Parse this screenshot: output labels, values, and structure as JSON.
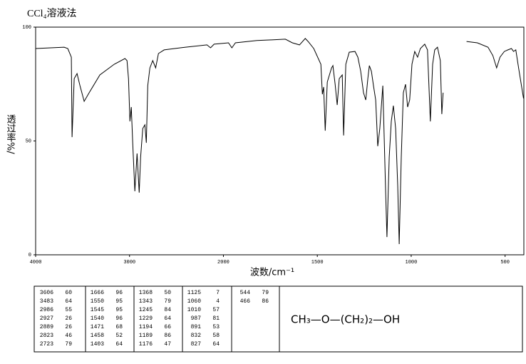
{
  "chart_data": {
    "type": "line",
    "title": "CCl₄溶液法",
    "xlabel": "波数/cm⁻¹",
    "ylabel": "透过率%/",
    "xlim": [
      4000,
      400
    ],
    "xticks": [
      4000,
      3000,
      2000,
      1500,
      1000,
      500
    ],
    "ylim": [
      0,
      100
    ],
    "yticks": [
      0,
      50,
      100
    ],
    "color": "#000000",
    "x": [
      4000,
      3696,
      3658,
      3620,
      3612,
      3589,
      3559,
      3528,
      3483,
      3430,
      3316,
      3163,
      3049,
      3027,
      3011,
      2996,
      2981,
      2966,
      2943,
      2920,
      2897,
      2882,
      2859,
      2836,
      2821,
      2806,
      2783,
      2753,
      2722,
      2692,
      2631,
      2403,
      2175,
      2137,
      2099,
      1973,
      1955,
      1936,
      1822,
      1746,
      1670,
      1633,
      1595,
      1564,
      1549,
      1519,
      1481,
      1473,
      1466,
      1458,
      1447,
      1424,
      1417,
      1405,
      1394,
      1383,
      1367,
      1360,
      1348,
      1330,
      1299,
      1284,
      1269,
      1254,
      1242,
      1231,
      1223,
      1212,
      1201,
      1189,
      1178,
      1167,
      1151,
      1136,
      1129,
      1117,
      1106,
      1095,
      1083,
      1072,
      1064,
      1053,
      1042,
      1030,
      1019,
      1008,
      996,
      981,
      966,
      951,
      928,
      913,
      898,
      886,
      875,
      860,
      845,
      837,
      830,
      770,
      705,
      648,
      591,
      565,
      545,
      527,
      504,
      485,
      466,
      455,
      443,
      428,
      402
    ],
    "values": [
      90.6,
      91.2,
      90.6,
      86.8,
      51.7,
      77.4,
      79.6,
      74.3,
      67.4,
      71.2,
      79.0,
      83.7,
      86.2,
      85.3,
      77.4,
      58.6,
      64.9,
      49.2,
      27.9,
      44.5,
      27.3,
      42.9,
      55.5,
      57.1,
      49.2,
      74.3,
      82.1,
      85.3,
      82.1,
      88.4,
      90.0,
      91.2,
      92.2,
      90.9,
      92.5,
      93.1,
      90.9,
      93.1,
      94.1,
      94.4,
      94.7,
      93.1,
      92.2,
      95.0,
      93.7,
      90.6,
      83.7,
      70.5,
      73.7,
      54.5,
      75.9,
      82.1,
      83.1,
      74.9,
      65.8,
      77.4,
      79.0,
      52.4,
      83.7,
      89.0,
      89.3,
      86.8,
      80.6,
      71.2,
      68.0,
      77.4,
      83.1,
      80.6,
      74.3,
      68.0,
      47.7,
      55.5,
      74.3,
      27.3,
      7.8,
      42.9,
      58.6,
      65.5,
      55.5,
      30.4,
      4.7,
      42.9,
      71.2,
      74.9,
      64.9,
      68.0,
      83.7,
      89.3,
      86.8,
      90.6,
      92.5,
      90.0,
      58.6,
      83.7,
      90.0,
      91.2,
      85.3,
      61.8,
      71.2,
      null,
      93.7,
      93.1,
      91.2,
      87.5,
      82.1,
      86.8,
      89.3,
      90.0,
      90.6,
      89.3,
      90.0,
      82.1,
      68.7
    ]
  },
  "peak_table": {
    "columns": [
      [
        [
          3606,
          60
        ],
        [
          3483,
          64
        ],
        [
          2986,
          55
        ],
        [
          2927,
          26
        ],
        [
          2889,
          26
        ],
        [
          2823,
          46
        ],
        [
          2723,
          79
        ]
      ],
      [
        [
          1666,
          96
        ],
        [
          1550,
          95
        ],
        [
          1545,
          95
        ],
        [
          1540,
          96
        ],
        [
          1471,
          68
        ],
        [
          1458,
          52
        ],
        [
          1403,
          64
        ]
      ],
      [
        [
          1368,
          50
        ],
        [
          1343,
          79
        ],
        [
          1245,
          84
        ],
        [
          1229,
          64
        ],
        [
          1194,
          66
        ],
        [
          1189,
          86
        ],
        [
          1176,
          47
        ]
      ],
      [
        [
          1125,
          7
        ],
        [
          1060,
          4
        ],
        [
          1010,
          57
        ],
        [
          987,
          81
        ],
        [
          891,
          53
        ],
        [
          832,
          58
        ],
        [
          827,
          64
        ]
      ],
      [
        [
          544,
          79
        ],
        [
          466,
          86
        ]
      ]
    ]
  },
  "formula": "CH₃—O—(CH₂)₂—OH"
}
